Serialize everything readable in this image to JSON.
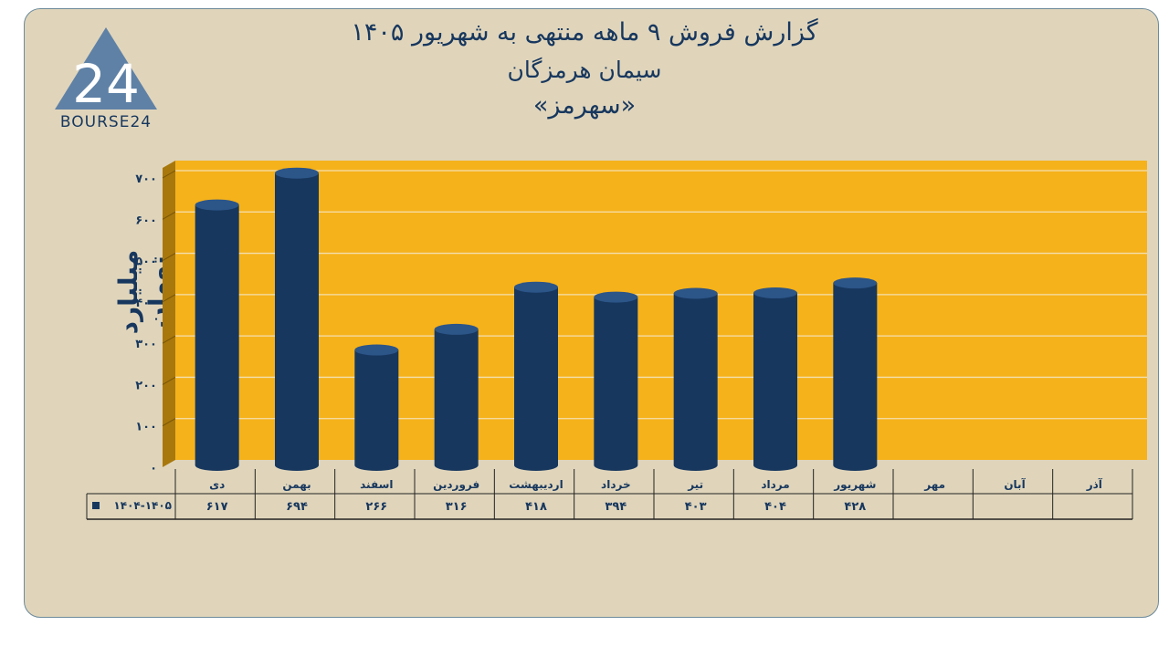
{
  "logo": {
    "text": "BOURSE24",
    "mark": "24"
  },
  "chart_data": {
    "type": "bar",
    "title": "گزارش  فروش ۹ ماهه منتهی به شهریور ۱۴۰۵",
    "subtitle": "سیمان هرمزگان",
    "subtitle2": "«سهرمز»",
    "ylabel": "میلیارد تومان",
    "xlabel": "",
    "ylim": [
      0,
      700
    ],
    "yticks": [
      "۰",
      "۱۰۰",
      "۲۰۰",
      "۳۰۰",
      "۴۰۰",
      "۵۰۰",
      "۶۰۰",
      "۷۰۰"
    ],
    "grid": true,
    "categories": [
      "دی",
      "بهمن",
      "اسفند",
      "فروردین",
      "اردیبهشت",
      "خرداد",
      "تیر",
      "مرداد",
      "شهریور",
      "مهر",
      "آبان",
      "آذر"
    ],
    "series": [
      {
        "name": "۱۴۰۴-۱۴۰۵",
        "values": [
          617,
          694,
          266,
          316,
          418,
          394,
          403,
          404,
          428,
          null,
          null,
          null
        ],
        "labels": [
          "۶۱۷",
          "۶۹۴",
          "۲۶۶",
          "۳۱۶",
          "۴۱۸",
          "۳۹۴",
          "۴۰۳",
          "۴۰۴",
          "۴۲۸",
          "",
          "",
          ""
        ]
      }
    ],
    "colors": {
      "plot_bg": "#f6b21b",
      "bar": "#17375e",
      "bar_top": "#2c5588",
      "wall": "#a8780d",
      "text": "#17375e",
      "card_bg": "#e0d5bb"
    }
  }
}
